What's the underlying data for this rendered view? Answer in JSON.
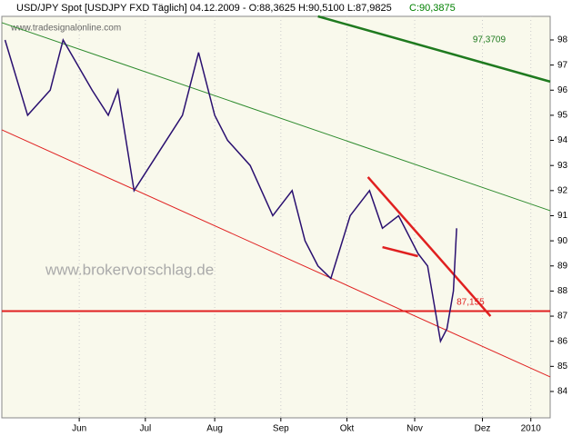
{
  "chart_data": {
    "type": "line",
    "title": "USD/JPY Spot [USDJPY FXD  Täglich] 04.12.2009 - O:88,3625 H:90,5100 L:87,9825",
    "close_label": "C:90,3875",
    "watermarks": [
      "www.tradesignalonline.com",
      "www.brokervorschlag.de"
    ],
    "x": [
      1,
      8,
      15,
      19,
      28,
      33,
      36,
      41,
      46,
      56,
      61,
      66,
      70,
      77,
      84,
      90,
      94,
      98,
      102,
      108,
      114,
      118,
      123,
      129,
      132,
      136,
      138,
      140,
      141
    ],
    "series": [
      {
        "color": "#2a1070",
        "values": [
          98,
          95,
          96,
          98,
          96,
          95,
          96,
          92,
          93,
          95,
          97.5,
          95,
          94,
          93,
          91,
          92,
          90,
          89,
          88.5,
          91,
          92,
          90.5,
          91,
          89.5,
          89,
          86,
          86.5,
          88,
          90.5
        ]
      }
    ],
    "lines": [
      {
        "x": [
          0,
          170
        ],
        "y": [
          98.69,
          91.2
        ],
        "color": "#2e8b2e",
        "width": 1
      },
      {
        "x": [
          98,
          170
        ],
        "y": [
          98.94,
          96.34
        ],
        "color": "#1f7a1f",
        "width": 2.5
      },
      {
        "x": [
          0,
          170
        ],
        "y": [
          94.42,
          84.58
        ],
        "color": "#e02020",
        "width": 1
      },
      {
        "x": [
          0,
          170
        ],
        "y": [
          87.2,
          87.2
        ],
        "color": "#e02020",
        "width": 2
      },
      {
        "x": [
          113.5,
          151.5
        ],
        "y": [
          92.54,
          87.0
        ],
        "color": "#e02020",
        "width": 2.5
      },
      {
        "x": [
          118,
          129
        ],
        "y": [
          89.75,
          89.39
        ],
        "color": "#e02020",
        "width": 2.5
      }
    ],
    "annotations": [
      {
        "text": "97,3709",
        "x": 146,
        "y": 98.0,
        "color": "#1f7a1f"
      },
      {
        "text": "87,155",
        "x": 141,
        "y": 87.55,
        "color": "#e02020"
      }
    ],
    "xlim": [
      0,
      170
    ],
    "ylim": [
      82.95,
      98.94
    ],
    "xticks": [
      {
        "value": 24,
        "label": "Jun"
      },
      {
        "value": 44.5,
        "label": "Jul"
      },
      {
        "value": 66,
        "label": "Aug"
      },
      {
        "value": 86.5,
        "label": "Sep"
      },
      {
        "value": 107,
        "label": "Okt"
      },
      {
        "value": 128,
        "label": "Nov"
      },
      {
        "value": 149,
        "label": "Dez"
      },
      {
        "value": 164,
        "label": "2010"
      }
    ],
    "yticks": [
      84,
      85,
      86,
      87,
      88,
      89,
      90,
      91,
      92,
      93,
      94,
      95,
      96,
      97,
      98
    ],
    "grid": true
  }
}
